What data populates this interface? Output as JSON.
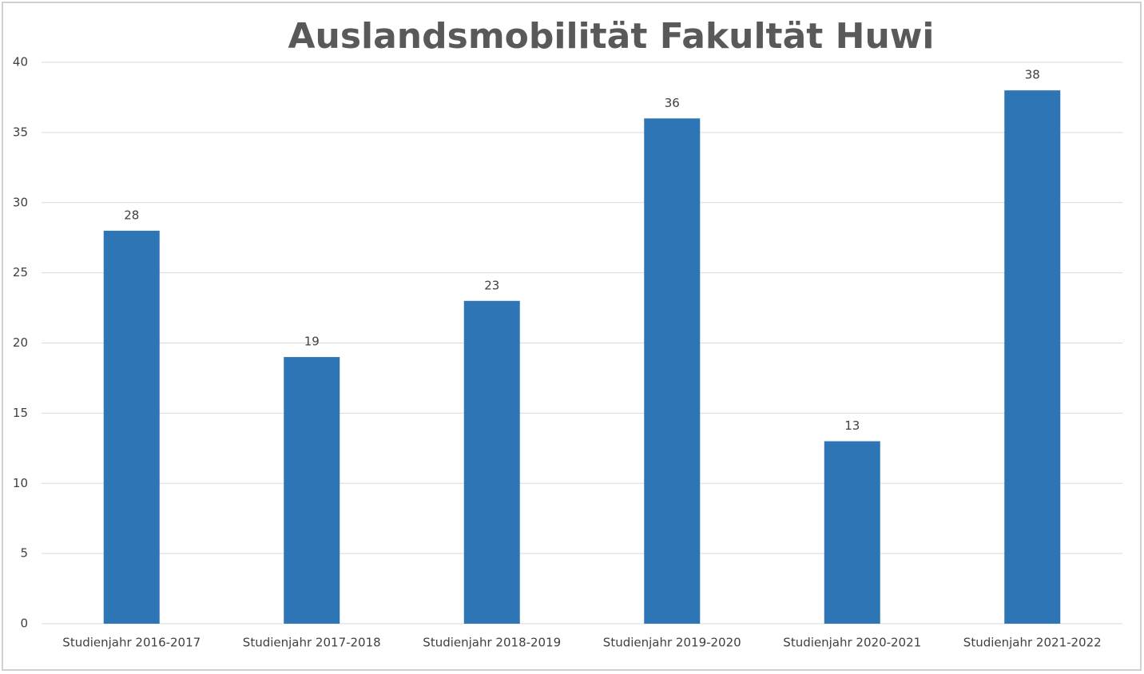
{
  "chart_data": {
    "type": "bar",
    "title": "Auslandsmobilität Fakultät Huwi",
    "categories": [
      "Studienjahr 2016-2017",
      "Studienjahr 2017-2018",
      "Studienjahr 2018-2019",
      "Studienjahr 2019-2020",
      "Studienjahr 2020-2021",
      "Studienjahr 2021-2022"
    ],
    "values": [
      28,
      19,
      23,
      36,
      13,
      38
    ],
    "color": "#2e75b6",
    "ylim": [
      0,
      40
    ],
    "yticks": [
      0,
      5,
      10,
      15,
      20,
      25,
      30,
      35,
      40
    ],
    "grid": true,
    "data_labels": true
  }
}
